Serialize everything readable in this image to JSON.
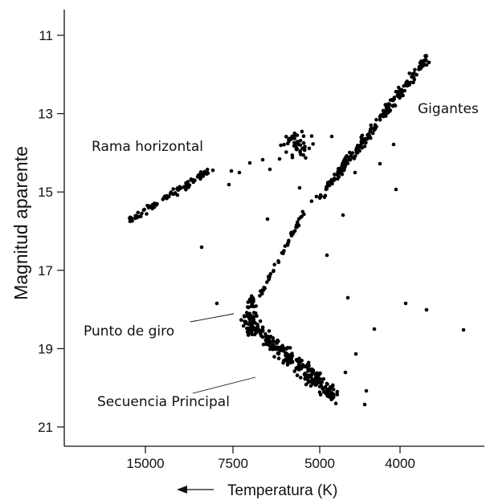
{
  "chart_data": {
    "type": "scatter",
    "title": "",
    "xlabel": "Temperatura (K)",
    "ylabel": "Magnitud aparente",
    "x_tick_labels": [
      "15000",
      "7500",
      "5000",
      "4000"
    ],
    "y_tick_labels": [
      "11",
      "13",
      "15",
      "17",
      "19",
      "21"
    ],
    "ylim": [
      21.3,
      10.4
    ],
    "y_inverted": true,
    "x_axis_arrow_direction": "left",
    "grid": false,
    "annotations": [
      {
        "id": "giants",
        "text": "Gigantes"
      },
      {
        "id": "hb",
        "text": "Rama horizontal"
      },
      {
        "id": "turnoff",
        "text": "Punto de giro"
      },
      {
        "id": "ms",
        "text": "Secuencia Principal"
      }
    ],
    "series": [
      {
        "clusters": [
          {
            "region": "main-sequence",
            "x_range": [
              "7500",
              "5000"
            ],
            "mag_range": [
              18.2,
              20.5
            ],
            "count": 260
          },
          {
            "region": "turnoff",
            "x_range": [
              "7500",
              "7500"
            ],
            "mag_range": [
              17.5,
              18.5
            ],
            "count": 40
          },
          {
            "region": "subgiant-branch",
            "x_range": [
              "7500",
              "5000"
            ],
            "mag_range": [
              15.3,
              17.6
            ],
            "count": 45
          },
          {
            "region": "red-giant-branch",
            "x_range": [
              "5000",
              "4000"
            ],
            "mag_range": [
              11.5,
              15.3
            ],
            "count": 230
          },
          {
            "region": "red-clump",
            "x_range": [
              "7500",
              "5000"
            ],
            "mag_range": [
              13.2,
              14.8
            ],
            "count": 45
          },
          {
            "region": "horizontal-branch",
            "x_range": [
              "15000",
              "7500"
            ],
            "mag_range": [
              14.3,
              15.9
            ],
            "count": 95
          },
          {
            "region": "field-outliers",
            "x_range": [
              "15000",
              "4000"
            ],
            "mag_range": [
              14.0,
              20.5
            ],
            "count": 30
          }
        ]
      }
    ]
  }
}
